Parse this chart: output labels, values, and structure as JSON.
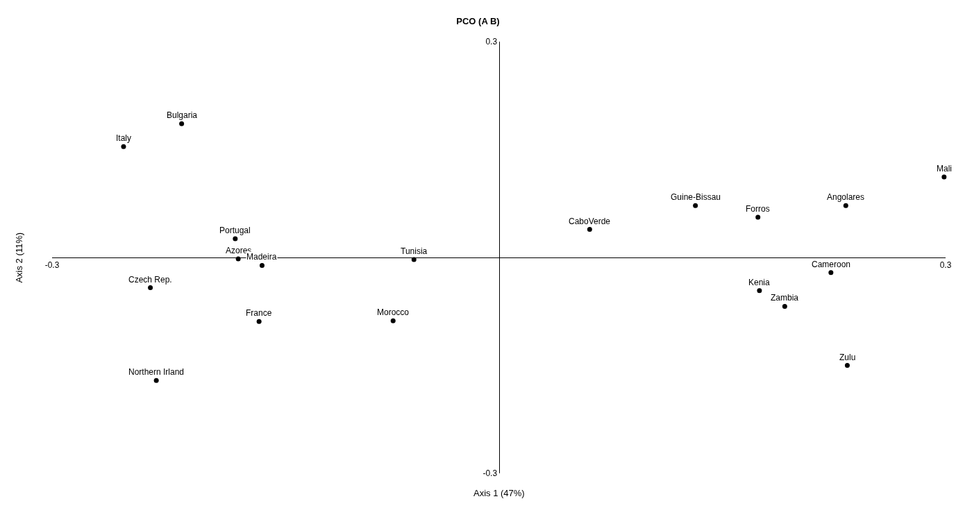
{
  "chart_data": {
    "type": "scatter",
    "title": "PCO (A B)",
    "xlabel": "Axis 1 (47%)",
    "ylabel": "Axis 2 (11%)",
    "x": [
      -0.252,
      -0.213,
      -0.177,
      -0.175,
      -0.159,
      -0.234,
      -0.161,
      -0.23,
      -0.057,
      -0.071,
      0.061,
      0.132,
      0.174,
      0.233,
      0.299,
      0.223,
      0.175,
      0.192,
      0.234
    ],
    "series": [
      {
        "color": "#000000",
        "values": [
          0.154,
          0.186,
          0.026,
          -0.002,
          -0.011,
          -0.042,
          -0.089,
          -0.171,
          -0.003,
          -0.088,
          0.039,
          0.072,
          0.056,
          0.072,
          0.112,
          -0.021,
          -0.046,
          -0.068,
          -0.15
        ]
      }
    ],
    "annotations": [
      {
        "text": "Italy",
        "x": -0.252,
        "y": 0.154
      },
      {
        "text": "Bulgaria",
        "x": -0.213,
        "y": 0.186
      },
      {
        "text": "Portugal",
        "x": -0.177,
        "y": 0.026
      },
      {
        "text": "Azores",
        "x": -0.175,
        "y": -0.002
      },
      {
        "text": "Madeira",
        "x": -0.159,
        "y": -0.011
      },
      {
        "text": "Czech Rep.",
        "x": -0.234,
        "y": -0.042
      },
      {
        "text": "France",
        "x": -0.161,
        "y": -0.089
      },
      {
        "text": "Northern Irland",
        "x": -0.23,
        "y": -0.171
      },
      {
        "text": "Tunisia",
        "x": -0.057,
        "y": -0.003
      },
      {
        "text": "Morocco",
        "x": -0.071,
        "y": -0.088
      },
      {
        "text": "CaboVerde",
        "x": 0.061,
        "y": 0.039
      },
      {
        "text": "Guine-Bissau",
        "x": 0.132,
        "y": 0.072
      },
      {
        "text": "Forros",
        "x": 0.174,
        "y": 0.056
      },
      {
        "text": "Angolares",
        "x": 0.233,
        "y": 0.072
      },
      {
        "text": "Mali",
        "x": 0.299,
        "y": 0.112
      },
      {
        "text": "Cameroon",
        "x": 0.223,
        "y": -0.021
      },
      {
        "text": "Kenia",
        "x": 0.175,
        "y": -0.046
      },
      {
        "text": "Zambia",
        "x": 0.192,
        "y": -0.068
      },
      {
        "text": "Zulu",
        "x": 0.234,
        "y": -0.15
      }
    ],
    "xlim": [
      -0.3,
      0.3
    ],
    "ylim": [
      -0.3,
      0.3
    ],
    "xticks": [
      -0.3,
      0.3
    ],
    "yticks": [
      -0.3,
      0.3
    ],
    "marker": "circle"
  }
}
